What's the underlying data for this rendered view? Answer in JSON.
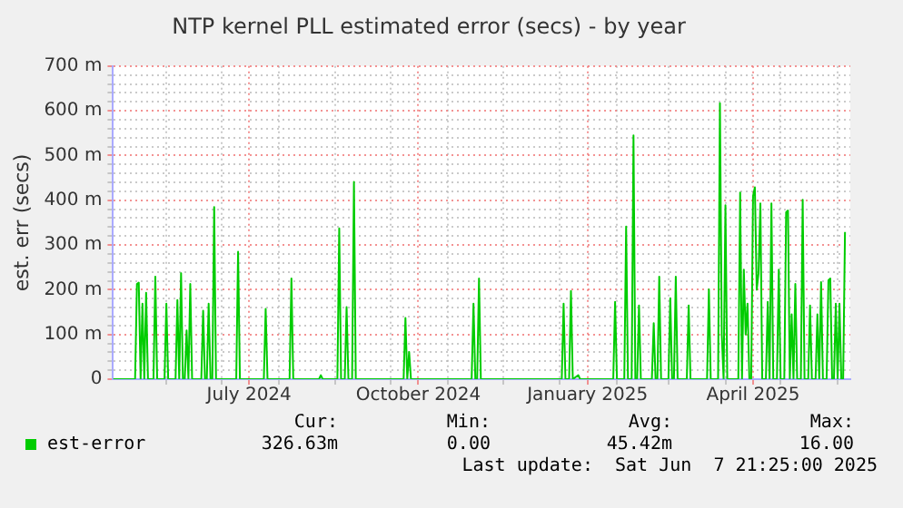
{
  "chart_data": {
    "type": "line",
    "title": "NTP kernel PLL estimated error (secs) - by year",
    "ylabel": "est. err (secs)",
    "xlim": [
      "2024-05-03",
      "2025-06-07T21:25"
    ],
    "xticks": [
      {
        "value": "2024-06-01",
        "label": null
      },
      {
        "value": "2024-07-01",
        "label": null
      },
      {
        "value": "2024-07-16",
        "label": "July 2024"
      },
      {
        "value": "2024-08-01",
        "label": null
      },
      {
        "value": "2024-09-01",
        "label": null
      },
      {
        "value": "2024-10-01",
        "label": null
      },
      {
        "value": "2024-10-16",
        "label": "October 2024"
      },
      {
        "value": "2024-11-01",
        "label": null
      },
      {
        "value": "2024-12-01",
        "label": null
      },
      {
        "value": "2025-01-01",
        "label": null
      },
      {
        "value": "2025-01-16",
        "label": "January 2025"
      },
      {
        "value": "2025-02-01",
        "label": null
      },
      {
        "value": "2025-03-01",
        "label": null
      },
      {
        "value": "2025-04-01",
        "label": null
      },
      {
        "value": "2025-04-16",
        "label": "April 2025"
      },
      {
        "value": "2025-05-01",
        "label": null
      },
      {
        "value": "2025-06-01",
        "label": null
      }
    ],
    "ylim": [
      0,
      700
    ],
    "yticks": [
      0,
      {
        "value": 20,
        "label": null
      },
      {
        "value": 40,
        "label": null
      },
      {
        "value": 60,
        "label": null
      },
      {
        "value": 80,
        "label": null
      },
      {
        "value": 100,
        "label": "100 m"
      },
      {
        "value": 120,
        "label": null
      },
      {
        "value": 140,
        "label": null
      },
      {
        "value": 160,
        "label": null
      },
      {
        "value": 180,
        "label": null
      },
      {
        "value": 200,
        "label": "200 m"
      },
      {
        "value": 220,
        "label": null
      },
      {
        "value": 240,
        "label": null
      },
      {
        "value": 260,
        "label": null
      },
      {
        "value": 280,
        "label": null
      },
      {
        "value": 300,
        "label": "300 m"
      },
      {
        "value": 320,
        "label": null
      },
      {
        "value": 340,
        "label": null
      },
      {
        "value": 360,
        "label": null
      },
      {
        "value": 380,
        "label": null
      },
      {
        "value": 400,
        "label": "400 m"
      },
      {
        "value": 420,
        "label": null
      },
      {
        "value": 440,
        "label": null
      },
      {
        "value": 460,
        "label": null
      },
      {
        "value": 480,
        "label": null
      },
      {
        "value": 500,
        "label": "500 m"
      },
      {
        "value": 520,
        "label": null
      },
      {
        "value": 540,
        "label": null
      },
      {
        "value": 560,
        "label": null
      },
      {
        "value": 580,
        "label": null
      },
      {
        "value": 600,
        "label": "600 m"
      },
      {
        "value": 620,
        "label": null
      },
      {
        "value": 640,
        "label": null
      },
      {
        "value": 660,
        "label": null
      },
      {
        "value": 680,
        "label": null
      },
      {
        "value": 700,
        "label": "700 m"
      }
    ],
    "grid": true,
    "legend": "bottom left",
    "annotations": [
      "Cur:",
      "Min:",
      "Avg:",
      "Max:",
      "326.63m",
      "0.00",
      "45.42m",
      "16.00",
      "Last update:  Sat Jun  7 21:25:00 2025"
    ],
    "series": [
      {
        "name": "est-error",
        "color": "#00cc00",
        "x": [
          "2024-05-03",
          "2024-05-15",
          "2024-05-16",
          "2024-05-17",
          "2024-05-18",
          "2024-05-19",
          "2024-05-20",
          "2024-05-21",
          "2024-05-22",
          "2024-05-25",
          "2024-05-26",
          "2024-05-27",
          "2024-05-31",
          "2024-06-01",
          "2024-06-02",
          "2024-06-06",
          "2024-06-07",
          "2024-06-08",
          "2024-06-09",
          "2024-06-10",
          "2024-06-11",
          "2024-06-12",
          "2024-06-13",
          "2024-06-14",
          "2024-06-15",
          "2024-06-20",
          "2024-06-21",
          "2024-06-22",
          "2024-06-23",
          "2024-06-24",
          "2024-06-25",
          "2024-06-26",
          "2024-06-27",
          "2024-06-28",
          "2024-07-09",
          "2024-07-10",
          "2024-07-11",
          "2024-07-24",
          "2024-07-25",
          "2024-07-26",
          "2024-08-07",
          "2024-08-08",
          "2024-08-09",
          "2024-08-23",
          "2024-08-24",
          "2024-08-25",
          "2024-09-02",
          "2024-09-03",
          "2024-09-04",
          "2024-09-06",
          "2024-09-07",
          "2024-09-08",
          "2024-09-10",
          "2024-09-11",
          "2024-09-12",
          "2024-10-08",
          "2024-10-09",
          "2024-10-10",
          "2024-10-11",
          "2024-10-12",
          "2024-11-14",
          "2024-11-15",
          "2024-11-16",
          "2024-11-17",
          "2024-11-18",
          "2024-11-19",
          "2025-01-02",
          "2025-01-03",
          "2025-01-04",
          "2025-01-06",
          "2025-01-07",
          "2025-01-08",
          "2025-01-11",
          "2025-01-12",
          "2025-01-30",
          "2025-01-31",
          "2025-02-01",
          "2025-02-05",
          "2025-02-06",
          "2025-02-07",
          "2025-02-09",
          "2025-02-10",
          "2025-02-11",
          "2025-02-12",
          "2025-02-13",
          "2025-02-14",
          "2025-02-20",
          "2025-02-21",
          "2025-02-22",
          "2025-02-23",
          "2025-02-24",
          "2025-02-25",
          "2025-03-01",
          "2025-03-02",
          "2025-03-03",
          "2025-03-04",
          "2025-03-05",
          "2025-03-06",
          "2025-03-11",
          "2025-03-12",
          "2025-03-13",
          "2025-03-22",
          "2025-03-23",
          "2025-03-24",
          "2025-03-28",
          "2025-03-29",
          "2025-03-30",
          "2025-03-31",
          "2025-04-01",
          "2025-04-02",
          "2025-04-08",
          "2025-04-09",
          "2025-04-10",
          "2025-04-11",
          "2025-04-12",
          "2025-04-13",
          "2025-04-14",
          "2025-04-15",
          "2025-04-16",
          "2025-04-17",
          "2025-04-18",
          "2025-04-19",
          "2025-04-20",
          "2025-04-21",
          "2025-04-23",
          "2025-04-24",
          "2025-04-25",
          "2025-04-26",
          "2025-04-27",
          "2025-04-29",
          "2025-04-30",
          "2025-05-01",
          "2025-05-03",
          "2025-05-04",
          "2025-05-05",
          "2025-05-06",
          "2025-05-07",
          "2025-05-08",
          "2025-05-09",
          "2025-05-10",
          "2025-05-12",
          "2025-05-13",
          "2025-05-14",
          "2025-05-16",
          "2025-05-17",
          "2025-05-18",
          "2025-05-20",
          "2025-05-21",
          "2025-05-22",
          "2025-05-23",
          "2025-05-24",
          "2025-05-26",
          "2025-05-27",
          "2025-05-28",
          "2025-05-29",
          "2025-05-30",
          "2025-05-31",
          "2025-06-01",
          "2025-06-02",
          "2025-06-03",
          "2025-06-04",
          "2025-06-05"
        ],
        "values": [
          0,
          0,
          213,
          216,
          0,
          169,
          0,
          193,
          0,
          0,
          229,
          0,
          0,
          169,
          0,
          0,
          177,
          0,
          237,
          0,
          0,
          109,
          0,
          213,
          0,
          0,
          153,
          0,
          0,
          169,
          0,
          0,
          385,
          0,
          0,
          285,
          0,
          0,
          157,
          0,
          0,
          225,
          0,
          0,
          9,
          0,
          0,
          337,
          0,
          0,
          161,
          0,
          0,
          441,
          0,
          0,
          137,
          0,
          61,
          0,
          0,
          169,
          0,
          0,
          225,
          0,
          0,
          169,
          0,
          0,
          197,
          0,
          9,
          0,
          0,
          173,
          0,
          0,
          341,
          0,
          0,
          545,
          0,
          0,
          165,
          0,
          0,
          125,
          0,
          0,
          229,
          0,
          0,
          181,
          0,
          0,
          229,
          0,
          0,
          165,
          0,
          0,
          201,
          0,
          0,
          617,
          100,
          0,
          389,
          0,
          0,
          417,
          0,
          245,
          100,
          169,
          0,
          0,
          409,
          429,
          200,
          237,
          393,
          0,
          0,
          173,
          0,
          393,
          0,
          0,
          245,
          0,
          0,
          373,
          377,
          0,
          145,
          0,
          213,
          0,
          0,
          401,
          0,
          0,
          165,
          0,
          0,
          145,
          0,
          217,
          0,
          0,
          221,
          225,
          0,
          0,
          169,
          0,
          169,
          0,
          0,
          329
        ]
      }
    ]
  }
}
